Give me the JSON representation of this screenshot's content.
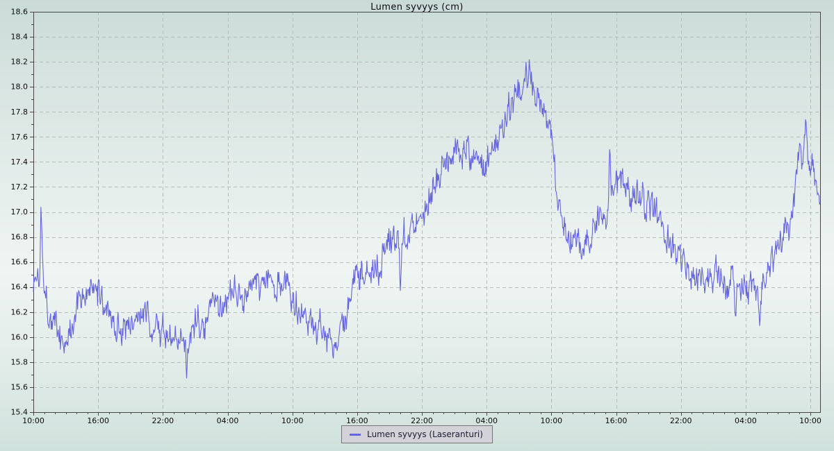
{
  "title": "Lumen syvyys (cm)",
  "legend": {
    "label": "Lumen syvyys (Laseranturi)"
  },
  "colors": {
    "line": "#6565e0",
    "grid": "#b5bdba",
    "axis": "#454545",
    "tick_text": "#0a0a0a",
    "title_text": "#0a0a12",
    "legend_bg": "#d3d2d8",
    "legend_border": "#757575"
  },
  "chart_data": {
    "type": "line",
    "title": "Lumen syvyys (cm)",
    "series_name": "Lumen syvyys (Laseranturi)",
    "xlabel": "",
    "ylabel": "",
    "x_unit": "hours",
    "x_range_hours": [
      0,
      72.9
    ],
    "x_tick_hours": [
      0,
      6,
      12,
      18,
      24,
      30,
      36,
      42,
      48,
      54,
      60,
      66,
      72
    ],
    "x_tick_labels": [
      "10:00",
      "16:00",
      "22:00",
      "04:00",
      "10:00",
      "16:00",
      "22:00",
      "04:00",
      "10:00",
      "16:00",
      "22:00",
      "04:00",
      "10:00"
    ],
    "x_minor_step_hours": 1,
    "ylim": [
      15.4,
      18.6
    ],
    "y_tick_step": 0.2,
    "y_minor_step": 0.1,
    "grid": "dashed",
    "legend_position": "bottom-center",
    "sample_step_hours": 0.05,
    "noise_amplitude": 0.15,
    "noise_persistence": 0.45,
    "noise_seed": 1337,
    "value_quantize": 0.01,
    "trend": [
      [
        0,
        16.45
      ],
      [
        0.6,
        16.5
      ],
      [
        0.7,
        17.08
      ],
      [
        0.9,
        16.6
      ],
      [
        1.2,
        16.3
      ],
      [
        1.5,
        16.2
      ],
      [
        2,
        16.1
      ],
      [
        2.5,
        16.0
      ],
      [
        3,
        15.95
      ],
      [
        3.3,
        16.0
      ],
      [
        3.6,
        16.1
      ],
      [
        4,
        16.25
      ],
      [
        4.5,
        16.35
      ],
      [
        5.5,
        16.35
      ],
      [
        6,
        16.35
      ],
      [
        6.5,
        16.3
      ],
      [
        7,
        16.2
      ],
      [
        7.5,
        16.1
      ],
      [
        8,
        16.05
      ],
      [
        8.5,
        16.1
      ],
      [
        9,
        16.15
      ],
      [
        10.5,
        16.15
      ],
      [
        11,
        16.1
      ],
      [
        12,
        16.05
      ],
      [
        12.5,
        16.0
      ],
      [
        13.5,
        15.95
      ],
      [
        14.1,
        15.95
      ],
      [
        14.2,
        15.7
      ],
      [
        14.3,
        16.0
      ],
      [
        15,
        16.1
      ],
      [
        16,
        16.15
      ],
      [
        16.5,
        16.2
      ],
      [
        17,
        16.25
      ],
      [
        18,
        16.3
      ],
      [
        19,
        16.3
      ],
      [
        20,
        16.4
      ],
      [
        21.5,
        16.45
      ],
      [
        22.5,
        16.4
      ],
      [
        23,
        16.45
      ],
      [
        24,
        16.35
      ],
      [
        24.5,
        16.3
      ],
      [
        25,
        16.2
      ],
      [
        25.5,
        16.15
      ],
      [
        26,
        16.1
      ],
      [
        27,
        16.05
      ],
      [
        27.5,
        16.0
      ],
      [
        28,
        15.95
      ],
      [
        28.6,
        16.0
      ],
      [
        29,
        16.2
      ],
      [
        29.5,
        16.4
      ],
      [
        30,
        16.45
      ],
      [
        31,
        16.5
      ],
      [
        31.5,
        16.55
      ],
      [
        32,
        16.6
      ],
      [
        32.5,
        16.7
      ],
      [
        33.5,
        16.8
      ],
      [
        33.9,
        16.75
      ],
      [
        34,
        16.5
      ],
      [
        34.15,
        16.8
      ],
      [
        35,
        16.9
      ],
      [
        36,
        17.0
      ],
      [
        36.5,
        17.1
      ],
      [
        37,
        17.2
      ],
      [
        37.5,
        17.3
      ],
      [
        38,
        17.4
      ],
      [
        39,
        17.5
      ],
      [
        40,
        17.5
      ],
      [
        40.5,
        17.45
      ],
      [
        41,
        17.4
      ],
      [
        41.5,
        17.35
      ],
      [
        42,
        17.4
      ],
      [
        42.5,
        17.45
      ],
      [
        43,
        17.55
      ],
      [
        43.5,
        17.7
      ],
      [
        44,
        17.85
      ],
      [
        44.5,
        17.95
      ],
      [
        45,
        18.0
      ],
      [
        45.5,
        18.05
      ],
      [
        45.85,
        18.1
      ],
      [
        45.95,
        18.28
      ],
      [
        46.1,
        18.0
      ],
      [
        46.5,
        17.95
      ],
      [
        47,
        17.9
      ],
      [
        47.5,
        17.8
      ],
      [
        48,
        17.6
      ],
      [
        48.3,
        17.35
      ],
      [
        48.7,
        17.05
      ],
      [
        49,
        16.95
      ],
      [
        49.5,
        16.85
      ],
      [
        50,
        16.8
      ],
      [
        50.5,
        16.75
      ],
      [
        51,
        16.7
      ],
      [
        51.5,
        16.8
      ],
      [
        52,
        16.9
      ],
      [
        53,
        16.95
      ],
      [
        53.3,
        17.05
      ],
      [
        53.4,
        17.55
      ],
      [
        53.55,
        17.1
      ],
      [
        54,
        17.25
      ],
      [
        54.5,
        17.2
      ],
      [
        55.5,
        17.15
      ],
      [
        56.5,
        17.1
      ],
      [
        57,
        17.1
      ],
      [
        57.5,
        17.0
      ],
      [
        58,
        16.95
      ],
      [
        58.5,
        16.85
      ],
      [
        59,
        16.75
      ],
      [
        59.5,
        16.7
      ],
      [
        60,
        16.65
      ],
      [
        60.5,
        16.6
      ],
      [
        61,
        16.55
      ],
      [
        61.5,
        16.5
      ],
      [
        63.5,
        16.5
      ],
      [
        64,
        16.45
      ],
      [
        64.8,
        16.45
      ],
      [
        65,
        16.2
      ],
      [
        65.2,
        16.4
      ],
      [
        66,
        16.4
      ],
      [
        67,
        16.45
      ],
      [
        67.3,
        16.2
      ],
      [
        67.5,
        16.45
      ],
      [
        68,
        16.5
      ],
      [
        68.5,
        16.6
      ],
      [
        69,
        16.7
      ],
      [
        69.5,
        16.8
      ],
      [
        70,
        16.9
      ],
      [
        70.3,
        17.0
      ],
      [
        70.6,
        17.2
      ],
      [
        71,
        17.45
      ],
      [
        71.3,
        17.5
      ],
      [
        71.55,
        17.68
      ],
      [
        71.8,
        17.45
      ],
      [
        72.1,
        17.4
      ],
      [
        72.4,
        17.25
      ],
      [
        72.9,
        17.15
      ]
    ]
  }
}
